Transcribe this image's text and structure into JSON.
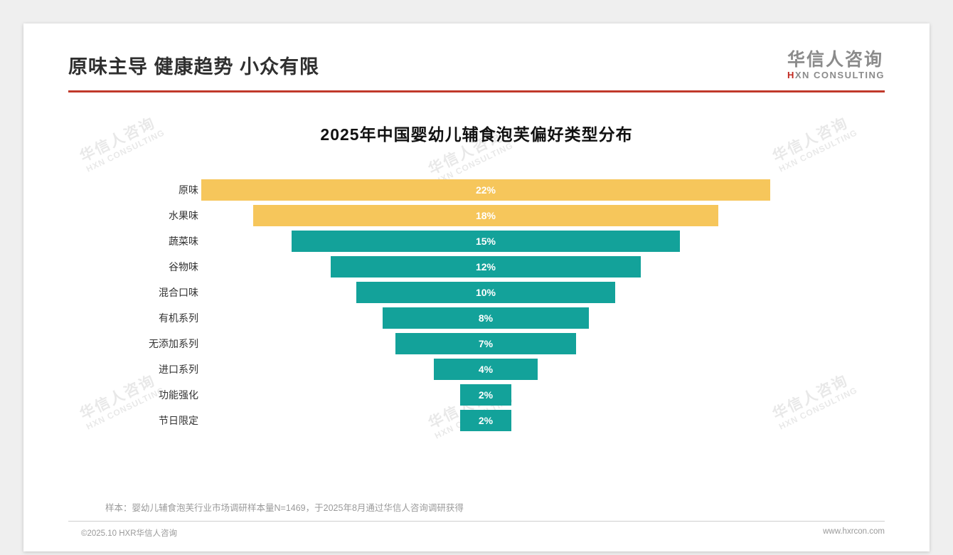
{
  "page": {
    "title": "原味主导 健康趋势 小众有限",
    "accent_color": "#c0392b"
  },
  "logo": {
    "zh": "华信人咨询",
    "en_prefix": "H",
    "en_rest": "XN CONSULTING"
  },
  "chart_data": {
    "type": "bar",
    "variant": "centered-funnel-horizontal",
    "title": "2025年中国婴幼儿辅食泡芙偏好类型分布",
    "categories": [
      "原味",
      "水果味",
      "蔬菜味",
      "谷物味",
      "混合口味",
      "有机系列",
      "无添加系列",
      "进口系列",
      "功能强化",
      "节日限定"
    ],
    "values": [
      22,
      18,
      15,
      12,
      10,
      8,
      7,
      4,
      2,
      2
    ],
    "value_suffix": "%",
    "bar_colors": [
      "#f6c65b",
      "#f6c65b",
      "#13a29a",
      "#13a29a",
      "#13a29a",
      "#13a29a",
      "#13a29a",
      "#13a29a",
      "#13a29a",
      "#13a29a"
    ],
    "xlim": [
      0,
      22
    ],
    "legend": "none",
    "grid": false
  },
  "footnote": "样本：婴幼儿辅食泡芙行业市场调研样本量N=1469，于2025年8月通过华信人咨询调研获得",
  "footer": {
    "left": "©2025.10 HXR华信人咨询",
    "right": "www.hxrcon.com"
  },
  "watermark": {
    "line1": "华信人咨询",
    "line2": "HXN CONSULTING"
  }
}
